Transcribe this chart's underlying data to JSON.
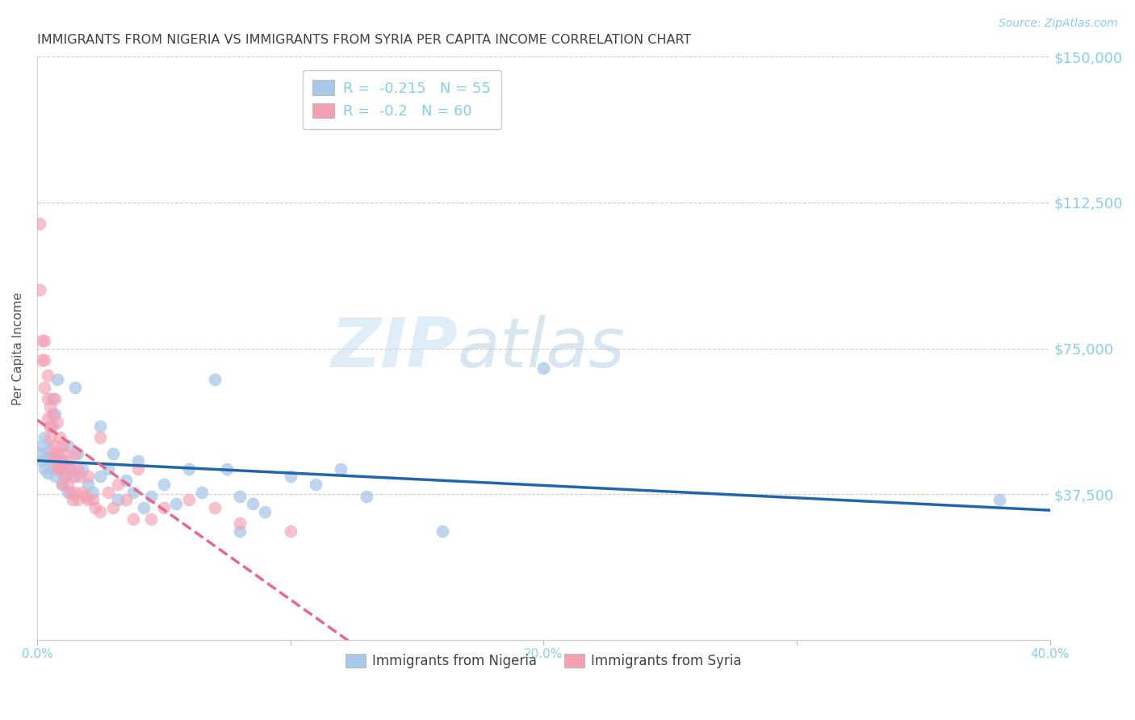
{
  "title": "IMMIGRANTS FROM NIGERIA VS IMMIGRANTS FROM SYRIA PER CAPITA INCOME CORRELATION CHART",
  "source": "Source: ZipAtlas.com",
  "ylabel": "Per Capita Income",
  "xlim": [
    0.0,
    0.4
  ],
  "ylim": [
    0,
    150000
  ],
  "yticks": [
    0,
    37500,
    75000,
    112500,
    150000
  ],
  "ytick_labels": [
    "",
    "$37,500",
    "$75,000",
    "$112,500",
    "$150,000"
  ],
  "xticks": [
    0.0,
    0.1,
    0.2,
    0.3,
    0.4
  ],
  "xtick_labels": [
    "0.0%",
    "",
    "20.0%",
    "",
    "40.0%"
  ],
  "nigeria_color": "#a8c8e8",
  "syria_color": "#f4a0b5",
  "nigeria_line_color": "#2166ac",
  "syria_line_color": "#e8688a",
  "nigeria_R": -0.215,
  "nigeria_N": 55,
  "syria_R": -0.2,
  "syria_N": 60,
  "watermark_zip": "ZIP",
  "watermark_atlas": "atlas",
  "background_color": "#ffffff",
  "grid_color": "#cccccc",
  "label_color": "#87CEEB",
  "title_color": "#404040",
  "nigeria_points": [
    [
      0.001,
      48000
    ],
    [
      0.002,
      46000
    ],
    [
      0.002,
      50000
    ],
    [
      0.003,
      44000
    ],
    [
      0.003,
      52000
    ],
    [
      0.004,
      47000
    ],
    [
      0.004,
      43000
    ],
    [
      0.005,
      55000
    ],
    [
      0.005,
      49000
    ],
    [
      0.006,
      62000
    ],
    [
      0.006,
      45000
    ],
    [
      0.007,
      58000
    ],
    [
      0.007,
      42000
    ],
    [
      0.008,
      67000
    ],
    [
      0.008,
      48000
    ],
    [
      0.009,
      44000
    ],
    [
      0.01,
      46000
    ],
    [
      0.01,
      40000
    ],
    [
      0.011,
      42000
    ],
    [
      0.012,
      38000
    ],
    [
      0.012,
      50000
    ],
    [
      0.013,
      44000
    ],
    [
      0.015,
      65000
    ],
    [
      0.015,
      42000
    ],
    [
      0.016,
      48000
    ],
    [
      0.018,
      44000
    ],
    [
      0.02,
      40000
    ],
    [
      0.022,
      38000
    ],
    [
      0.025,
      55000
    ],
    [
      0.025,
      42000
    ],
    [
      0.028,
      44000
    ],
    [
      0.03,
      48000
    ],
    [
      0.032,
      36000
    ],
    [
      0.035,
      41000
    ],
    [
      0.038,
      38000
    ],
    [
      0.04,
      46000
    ],
    [
      0.042,
      34000
    ],
    [
      0.045,
      37000
    ],
    [
      0.05,
      40000
    ],
    [
      0.055,
      35000
    ],
    [
      0.06,
      44000
    ],
    [
      0.065,
      38000
    ],
    [
      0.07,
      67000
    ],
    [
      0.075,
      44000
    ],
    [
      0.08,
      37000
    ],
    [
      0.085,
      35000
    ],
    [
      0.09,
      33000
    ],
    [
      0.1,
      42000
    ],
    [
      0.11,
      40000
    ],
    [
      0.12,
      44000
    ],
    [
      0.13,
      37000
    ],
    [
      0.16,
      28000
    ],
    [
      0.2,
      70000
    ],
    [
      0.38,
      36000
    ],
    [
      0.08,
      28000
    ]
  ],
  "syria_points": [
    [
      0.001,
      107000
    ],
    [
      0.001,
      90000
    ],
    [
      0.002,
      77000
    ],
    [
      0.002,
      72000
    ],
    [
      0.003,
      77000
    ],
    [
      0.003,
      72000
    ],
    [
      0.003,
      65000
    ],
    [
      0.004,
      68000
    ],
    [
      0.004,
      62000
    ],
    [
      0.004,
      57000
    ],
    [
      0.005,
      55000
    ],
    [
      0.005,
      60000
    ],
    [
      0.005,
      52000
    ],
    [
      0.006,
      58000
    ],
    [
      0.006,
      48000
    ],
    [
      0.006,
      55000
    ],
    [
      0.007,
      50000
    ],
    [
      0.007,
      46000
    ],
    [
      0.007,
      62000
    ],
    [
      0.008,
      56000
    ],
    [
      0.008,
      48000
    ],
    [
      0.008,
      44000
    ],
    [
      0.009,
      52000
    ],
    [
      0.009,
      44000
    ],
    [
      0.01,
      50000
    ],
    [
      0.01,
      45000
    ],
    [
      0.01,
      40000
    ],
    [
      0.011,
      48000
    ],
    [
      0.011,
      43000
    ],
    [
      0.012,
      46000
    ],
    [
      0.012,
      40000
    ],
    [
      0.013,
      44000
    ],
    [
      0.013,
      38000
    ],
    [
      0.014,
      42000
    ],
    [
      0.014,
      36000
    ],
    [
      0.015,
      48000
    ],
    [
      0.015,
      38000
    ],
    [
      0.016,
      44000
    ],
    [
      0.016,
      36000
    ],
    [
      0.017,
      42000
    ],
    [
      0.018,
      38000
    ],
    [
      0.019,
      37000
    ],
    [
      0.02,
      42000
    ],
    [
      0.02,
      36000
    ],
    [
      0.022,
      36000
    ],
    [
      0.023,
      34000
    ],
    [
      0.025,
      52000
    ],
    [
      0.025,
      33000
    ],
    [
      0.028,
      38000
    ],
    [
      0.03,
      34000
    ],
    [
      0.032,
      40000
    ],
    [
      0.035,
      36000
    ],
    [
      0.038,
      31000
    ],
    [
      0.04,
      44000
    ],
    [
      0.045,
      31000
    ],
    [
      0.05,
      34000
    ],
    [
      0.06,
      36000
    ],
    [
      0.07,
      34000
    ],
    [
      0.08,
      30000
    ],
    [
      0.1,
      28000
    ]
  ]
}
